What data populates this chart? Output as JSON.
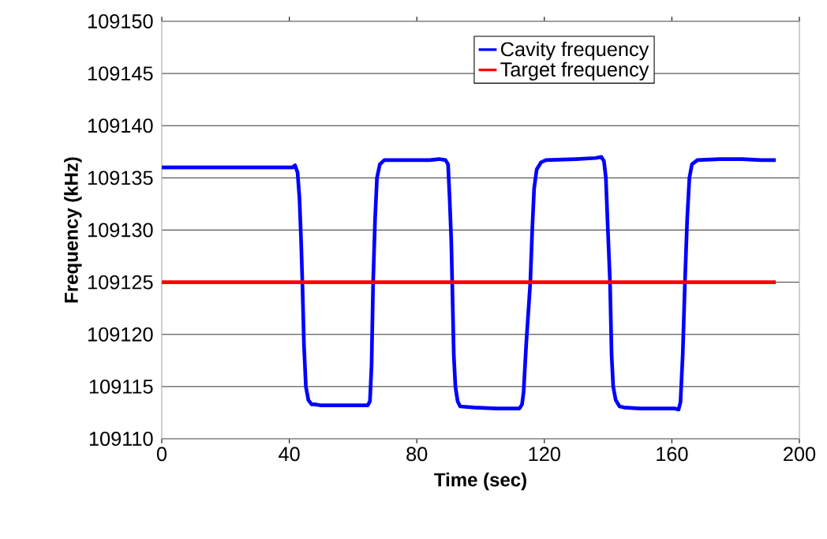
{
  "chart_data": {
    "type": "line",
    "xlabel": "Time (sec)",
    "ylabel": "Frequency (kHz)",
    "xlim": [
      0,
      200
    ],
    "xticks": [
      0,
      40,
      80,
      120,
      160,
      200
    ],
    "ylim": [
      109110,
      109150
    ],
    "yticks": [
      109110,
      109115,
      109120,
      109125,
      109130,
      109135,
      109140,
      109145,
      109150
    ],
    "grid": "y",
    "legend": "top right",
    "marker": "none",
    "line_style": "solid",
    "series": [
      {
        "name": "Cavity frequency",
        "color": "#0000ff",
        "x": [
          0,
          41,
          41.8,
          42.6,
          43.2,
          43.7,
          44.1,
          44.6,
          45.2,
          46,
          47,
          48,
          50,
          64.6,
          65.3,
          65.8,
          66.3,
          66.9,
          67.5,
          68.4,
          69.8,
          84,
          87,
          89,
          89.8,
          90.3,
          90.8,
          91.1,
          91.6,
          92.1,
          92.8,
          93.6,
          98,
          105,
          112.2,
          113,
          113.5,
          114.3,
          115.6,
          116.2,
          116.8,
          117.6,
          119,
          120.5,
          130,
          136,
          137.9,
          138.7,
          139.3,
          139.8,
          140.6,
          141.1,
          141.6,
          142.4,
          143.6,
          145,
          150,
          161,
          162.1,
          162.7,
          163.4,
          164.1,
          164.8,
          165.5,
          166.3,
          168,
          175,
          182,
          188,
          192.6
        ],
        "values": [
          109136.0,
          109136.0,
          109136.2,
          109135.5,
          109133,
          109129,
          109125,
          109119,
          109115,
          109113.7,
          109113.3,
          109113.3,
          109113.2,
          109113.2,
          109113.6,
          109117,
          109125,
          109131,
          109135,
          109136.3,
          109136.7,
          109136.7,
          109136.8,
          109136.7,
          109136.3,
          109133,
          109129,
          109125,
          109118,
          109115,
          109113.6,
          109113.1,
          109113.0,
          109112.9,
          109112.9,
          109113.3,
          109114.5,
          109119,
          109125,
          109130,
          109134,
          109135.8,
          109136.5,
          109136.7,
          109136.8,
          109136.9,
          109137.0,
          109136.6,
          109135,
          109131,
          109125,
          109118,
          109115,
          109113.7,
          109113.1,
          109113.0,
          109112.9,
          109112.9,
          109112.8,
          109113.5,
          109118,
          109125,
          109131,
          109135,
          109136.3,
          109136.7,
          109136.8,
          109136.8,
          109136.7,
          109136.7
        ]
      },
      {
        "name": "Target frequency",
        "color": "#ff0000",
        "x": [
          0,
          192.6
        ],
        "values": [
          109125,
          109125
        ]
      }
    ]
  }
}
